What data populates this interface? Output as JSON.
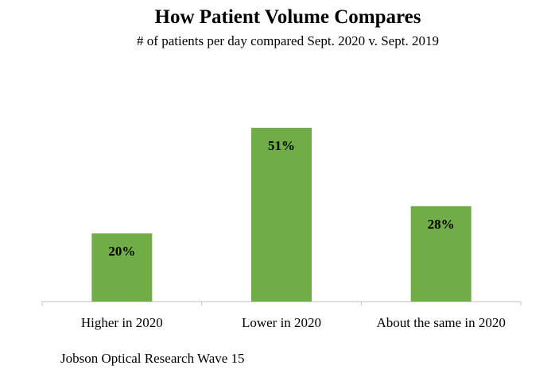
{
  "chart_data": {
    "type": "bar",
    "title": "How Patient Volume Compares",
    "subtitle": "# of patients per day compared Sept. 2020 v. Sept. 2019",
    "categories": [
      "Higher in 2020",
      "Lower in 2020",
      "About the same in 2020"
    ],
    "values": [
      20,
      51,
      28
    ],
    "data_labels": [
      "20%",
      "51%",
      "28%"
    ],
    "ylim": [
      0,
      51
    ],
    "grid": false,
    "legend": "none",
    "bar_color": "#70AD47",
    "axis_color": "#BFBFBF"
  },
  "source": "Jobson Optical Research Wave 15"
}
